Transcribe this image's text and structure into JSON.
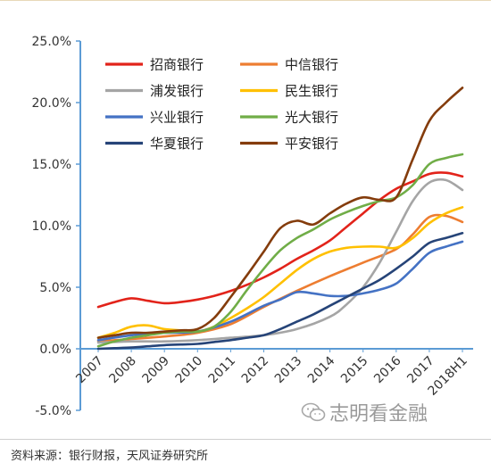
{
  "chart_data": {
    "type": "line",
    "categories": [
      "2007",
      "2008",
      "2009",
      "2010",
      "2011",
      "2012",
      "2013",
      "2014",
      "2015",
      "2016",
      "2017",
      "2018H1"
    ],
    "ylim": [
      -5,
      25
    ],
    "yticks": [
      "-5.0%",
      "0.0%",
      "5.0%",
      "10.0%",
      "15.0%",
      "20.0%",
      "25.0%"
    ],
    "ytick_values": [
      -5,
      0,
      5,
      10,
      15,
      20,
      25
    ],
    "grid": false,
    "legend_position": "top-left",
    "series": [
      {
        "name": "招商银行",
        "color": "#e2231a",
        "x": [
          0,
          0.5,
          1,
          1.5,
          2,
          2.5,
          3,
          3.5,
          4,
          4.5,
          5,
          5.5,
          6,
          6.5,
          7,
          7.5,
          8,
          8.5,
          9,
          9.5,
          10,
          10.5,
          11
        ],
        "values": [
          3.4,
          3.8,
          4.1,
          3.9,
          3.7,
          3.8,
          4.0,
          4.3,
          4.7,
          5.2,
          5.8,
          6.5,
          7.3,
          8.0,
          8.8,
          9.9,
          11.0,
          12.1,
          13.0,
          13.6,
          14.2,
          14.3,
          14.0
        ]
      },
      {
        "name": "中信银行",
        "color": "#ed7d31",
        "x": [
          0,
          1,
          2,
          3,
          4,
          5,
          6,
          7,
          8,
          9,
          9.5,
          10,
          10.5,
          11
        ],
        "values": [
          0.6,
          0.8,
          1.0,
          1.3,
          2.0,
          3.4,
          4.7,
          5.9,
          7.0,
          8.1,
          9.3,
          10.7,
          10.8,
          10.3
        ]
      },
      {
        "name": "浦发银行",
        "color": "#a5a5a5",
        "x": [
          0,
          1,
          2,
          3,
          4,
          5,
          6,
          7,
          7.5,
          8,
          8.5,
          9,
          9.5,
          10,
          10.5,
          11
        ],
        "values": [
          0.5,
          0.6,
          0.6,
          0.7,
          0.9,
          1.1,
          1.6,
          2.6,
          3.6,
          5.0,
          7.0,
          9.5,
          12.0,
          13.5,
          13.7,
          12.9
        ]
      },
      {
        "name": "民生银行",
        "color": "#ffc000",
        "x": [
          0,
          0.5,
          1,
          1.5,
          2,
          2.5,
          3,
          3.5,
          4,
          4.5,
          5,
          5.5,
          6,
          6.5,
          7,
          7.5,
          8,
          8.5,
          9,
          9.5,
          10,
          10.5,
          11
        ],
        "values": [
          0.9,
          1.3,
          1.8,
          1.9,
          1.6,
          1.5,
          1.4,
          1.8,
          2.5,
          3.3,
          4.2,
          5.3,
          6.4,
          7.3,
          7.9,
          8.2,
          8.3,
          8.3,
          8.2,
          9.0,
          10.2,
          11.0,
          11.5
        ]
      },
      {
        "name": "兴业银行",
        "color": "#4472c4",
        "x": [
          0,
          1,
          2,
          3,
          4,
          5,
          5.5,
          6,
          6.5,
          7,
          7.5,
          8,
          8.5,
          9,
          9.5,
          10,
          10.5,
          11
        ],
        "values": [
          0.7,
          1.1,
          1.3,
          1.4,
          2.2,
          3.5,
          4.0,
          4.6,
          4.5,
          4.3,
          4.3,
          4.5,
          4.8,
          5.3,
          6.5,
          7.8,
          8.3,
          8.7
        ]
      },
      {
        "name": "光大银行",
        "color": "#70ad47",
        "x": [
          0,
          0.5,
          1,
          1.5,
          2,
          2.5,
          3,
          3.5,
          4,
          4.5,
          5,
          5.5,
          6,
          6.5,
          7,
          7.5,
          8,
          8.5,
          9,
          9.5,
          10,
          10.5,
          11
        ],
        "values": [
          0.2,
          0.6,
          0.9,
          1.1,
          1.3,
          1.4,
          1.4,
          1.8,
          3.0,
          4.8,
          6.5,
          8.0,
          9.0,
          9.7,
          10.5,
          11.1,
          11.6,
          12.0,
          12.3,
          13.3,
          15.0,
          15.5,
          15.8
        ]
      },
      {
        "name": "华夏银行",
        "color": "#264478",
        "x": [
          0,
          0.5,
          1,
          1.5,
          2,
          2.5,
          3,
          3.5,
          4,
          4.5,
          5,
          5.5,
          6,
          6.5,
          7,
          7.5,
          8,
          8.5,
          9,
          9.5,
          10,
          10.5,
          11
        ],
        "values": [
          0.0,
          0.05,
          0.1,
          0.2,
          0.3,
          0.35,
          0.4,
          0.55,
          0.7,
          0.9,
          1.1,
          1.6,
          2.2,
          2.8,
          3.5,
          4.2,
          4.9,
          5.6,
          6.5,
          7.5,
          8.6,
          9.0,
          9.4
        ]
      },
      {
        "name": "平安银行",
        "color": "#843c0c",
        "x": [
          0,
          0.5,
          1,
          1.5,
          2,
          2.5,
          3,
          3.5,
          4,
          4.5,
          5,
          5.5,
          6,
          6.5,
          7,
          7.5,
          8,
          8.5,
          9,
          9.5,
          10,
          10.5,
          11
        ],
        "values": [
          0.9,
          1.1,
          1.3,
          1.3,
          1.4,
          1.5,
          1.6,
          2.5,
          4.2,
          6.0,
          7.9,
          9.8,
          10.4,
          10.1,
          11.0,
          11.8,
          12.3,
          12.1,
          12.3,
          15.4,
          18.5,
          20.0,
          21.2
        ]
      }
    ]
  },
  "watermark": {
    "text": "志明看金融",
    "icon": "wechat-icon"
  },
  "source": "资料来源：银行财报，天风证券研究所",
  "colors": {
    "axis": "#5b9bd5",
    "text": "#333333"
  }
}
